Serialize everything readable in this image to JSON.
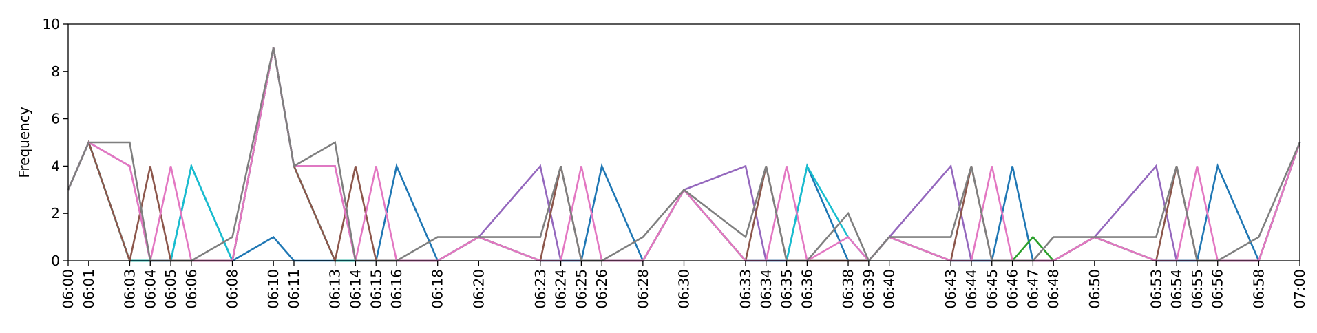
{
  "chart_data": {
    "type": "line",
    "title": "",
    "xlabel": "",
    "ylabel": "Frequency",
    "ylim": [
      0,
      10
    ],
    "yticks": [
      0,
      2,
      4,
      6,
      8,
      10
    ],
    "xlim": [
      "06:00",
      "07:00"
    ],
    "grid": false,
    "legend": "none",
    "x": [
      "06:00",
      "06:01",
      "06:03",
      "06:04",
      "06:05",
      "06:06",
      "06:08",
      "06:10",
      "06:11",
      "06:13",
      "06:14",
      "06:15",
      "06:16",
      "06:18",
      "06:20",
      "06:23",
      "06:24",
      "06:25",
      "06:26",
      "06:28",
      "06:30",
      "06:33",
      "06:34",
      "06:35",
      "06:36",
      "06:38",
      "06:39",
      "06:40",
      "06:43",
      "06:44",
      "06:45",
      "06:46",
      "06:47",
      "06:48",
      "06:50",
      "06:53",
      "06:54",
      "06:55",
      "06:56",
      "06:58",
      "07:00"
    ],
    "series": [
      {
        "color": "#1f77b4",
        "values": [
          3,
          5,
          0,
          0,
          0,
          4,
          0,
          1,
          0,
          0,
          0,
          0,
          4,
          0,
          1,
          0,
          0,
          0,
          4,
          0,
          3,
          0,
          0,
          0,
          4,
          0,
          0,
          1,
          0,
          0,
          0,
          4,
          0,
          0,
          1,
          0,
          0,
          0,
          4,
          0,
          5
        ]
      },
      {
        "color": "#2ca02c",
        "values": [
          3,
          5,
          0,
          0,
          0,
          0,
          0,
          9,
          4,
          0,
          0,
          0,
          0,
          0,
          1,
          0,
          0,
          0,
          0,
          0,
          3,
          0,
          0,
          0,
          0,
          0,
          0,
          1,
          0,
          0,
          0,
          0,
          1,
          0,
          1,
          0,
          0,
          0,
          0,
          0,
          5
        ]
      },
      {
        "color": "#17becf",
        "values": [
          3,
          5,
          0,
          0,
          0,
          4,
          0,
          9,
          4,
          0,
          0,
          0,
          0,
          0,
          1,
          0,
          0,
          0,
          0,
          0,
          3,
          0,
          0,
          0,
          4,
          1,
          0,
          1,
          0,
          0,
          0,
          0,
          0,
          0,
          1,
          0,
          0,
          0,
          0,
          0,
          5
        ]
      },
      {
        "color": "#9467bd",
        "values": [
          3,
          5,
          4,
          0,
          0,
          0,
          0,
          9,
          4,
          4,
          0,
          0,
          0,
          0,
          1,
          4,
          0,
          0,
          0,
          0,
          3,
          4,
          0,
          0,
          0,
          0,
          0,
          1,
          4,
          0,
          0,
          0,
          0,
          0,
          1,
          4,
          0,
          0,
          0,
          0,
          5
        ]
      },
      {
        "color": "#8c564b",
        "values": [
          3,
          5,
          0,
          4,
          0,
          0,
          0,
          9,
          4,
          0,
          4,
          0,
          0,
          0,
          1,
          0,
          4,
          0,
          0,
          0,
          3,
          0,
          4,
          0,
          0,
          0,
          0,
          1,
          0,
          4,
          0,
          0,
          0,
          0,
          1,
          0,
          4,
          0,
          0,
          0,
          5
        ]
      },
      {
        "color": "#e377c2",
        "values": [
          3,
          5,
          4,
          0,
          4,
          0,
          0,
          9,
          4,
          4,
          0,
          4,
          0,
          0,
          1,
          0,
          0,
          4,
          0,
          0,
          3,
          0,
          0,
          4,
          0,
          1,
          0,
          1,
          0,
          0,
          4,
          0,
          0,
          0,
          1,
          0,
          0,
          4,
          0,
          0,
          5
        ]
      },
      {
        "color": "#7f7f7f",
        "values": [
          3,
          5,
          5,
          0,
          0,
          0,
          1,
          9,
          4,
          5,
          0,
          0,
          0,
          1,
          1,
          1,
          4,
          0,
          0,
          1,
          3,
          1,
          4,
          0,
          0,
          2,
          0,
          1,
          1,
          4,
          0,
          0,
          0,
          1,
          1,
          1,
          4,
          0,
          0,
          1,
          5
        ]
      }
    ]
  }
}
